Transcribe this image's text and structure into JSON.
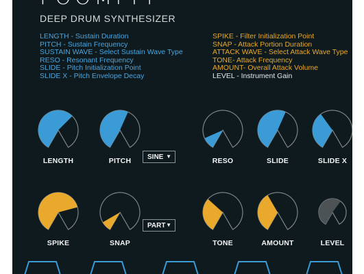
{
  "header": {
    "title": "FOOMPFF",
    "subtitle": "DEEP DRUM SYNTHESIZER"
  },
  "legend_left": [
    {
      "key": "LENGTH",
      "desc": "  - Sustain Duration",
      "color": "blue"
    },
    {
      "key": "PITCH",
      "desc": " - Sustain Frequency",
      "color": "blue"
    },
    {
      "key": "SUSTAIN WAVE",
      "desc": " - Select Sustain Wave Type",
      "color": "blue"
    },
    {
      "key": "RESO",
      "desc": " - Resonant Frequency",
      "color": "blue"
    },
    {
      "key": "SLIDE",
      "desc": " - Pitch Initialization Point",
      "color": "blue"
    },
    {
      "key": "SLIDE X",
      "desc": " - Pitch Envelope Decay",
      "color": "blue"
    }
  ],
  "legend_right": [
    {
      "key": "SPIKE",
      "desc": " - Filter Initialization Point",
      "color": "orange"
    },
    {
      "key": "SNAP",
      "desc": " - Attack Portion Duration",
      "color": "orange"
    },
    {
      "key": "ATTACK WAVE",
      "desc": " - Select Attack Wave Type",
      "color": "orange"
    },
    {
      "key": "TONE",
      "desc": "- Attack Frequency",
      "color": "orange"
    },
    {
      "key": "AMOUNT",
      "desc": "- Overall Attack Volume",
      "color": "orange"
    },
    {
      "key": "LEVEL",
      "desc": " - Instrument Gain",
      "color": "white"
    }
  ],
  "colors": {
    "panel": "#0f1a1e",
    "blue": "#3b9bd6",
    "orange": "#e8a92c",
    "grey": "#4d5255",
    "track": "#7d8589"
  },
  "knobs_row1": [
    {
      "label": "LENGTH",
      "value": 0.65,
      "color": "blue"
    },
    {
      "label": "PITCH",
      "value": 0.58,
      "color": "blue"
    },
    {
      "label": "RESO",
      "value": 0.12,
      "color": "blue"
    },
    {
      "label": "SLIDE",
      "value": 0.58,
      "color": "blue"
    },
    {
      "label": "SLIDE X",
      "value": 0.38,
      "color": "blue"
    }
  ],
  "knobs_row2": [
    {
      "label": "SPIKE",
      "value": 0.75,
      "color": "orange"
    },
    {
      "label": "SNAP",
      "value": 0.1,
      "color": "orange"
    },
    {
      "label": "TONE",
      "value": 0.34,
      "color": "orange"
    },
    {
      "label": "AMOUNT",
      "value": 0.4,
      "color": "orange"
    },
    {
      "label": "LEVEL",
      "value": 0.62,
      "color": "grey"
    }
  ],
  "sustain_wave": {
    "value": "SINE"
  },
  "attack_wave": {
    "value": "PART"
  }
}
